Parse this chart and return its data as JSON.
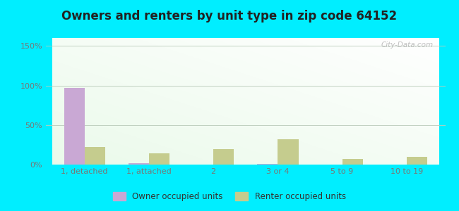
{
  "categories": [
    "1, detached",
    "1, attached",
    "2",
    "3 or 4",
    "5 to 9",
    "10 to 19"
  ],
  "owner_values": [
    97,
    2,
    0,
    1,
    0,
    0
  ],
  "renter_values": [
    22,
    14,
    20,
    32,
    7,
    10
  ],
  "owner_color": "#c9a8d4",
  "renter_color": "#c5cc8e",
  "title": "Owners and renters by unit type in zip code 64152",
  "title_fontsize": 12,
  "ylabel_ticks": [
    "0%",
    "50%",
    "100%",
    "150%"
  ],
  "ytick_values": [
    0,
    50,
    100,
    150
  ],
  "ylim": [
    0,
    160
  ],
  "background_outer": "#00eeff",
  "legend_owner": "Owner occupied units",
  "legend_renter": "Renter occupied units",
  "bar_width": 0.32,
  "watermark": "City-Data.com",
  "tick_color": "#777777",
  "tick_fontsize": 8
}
